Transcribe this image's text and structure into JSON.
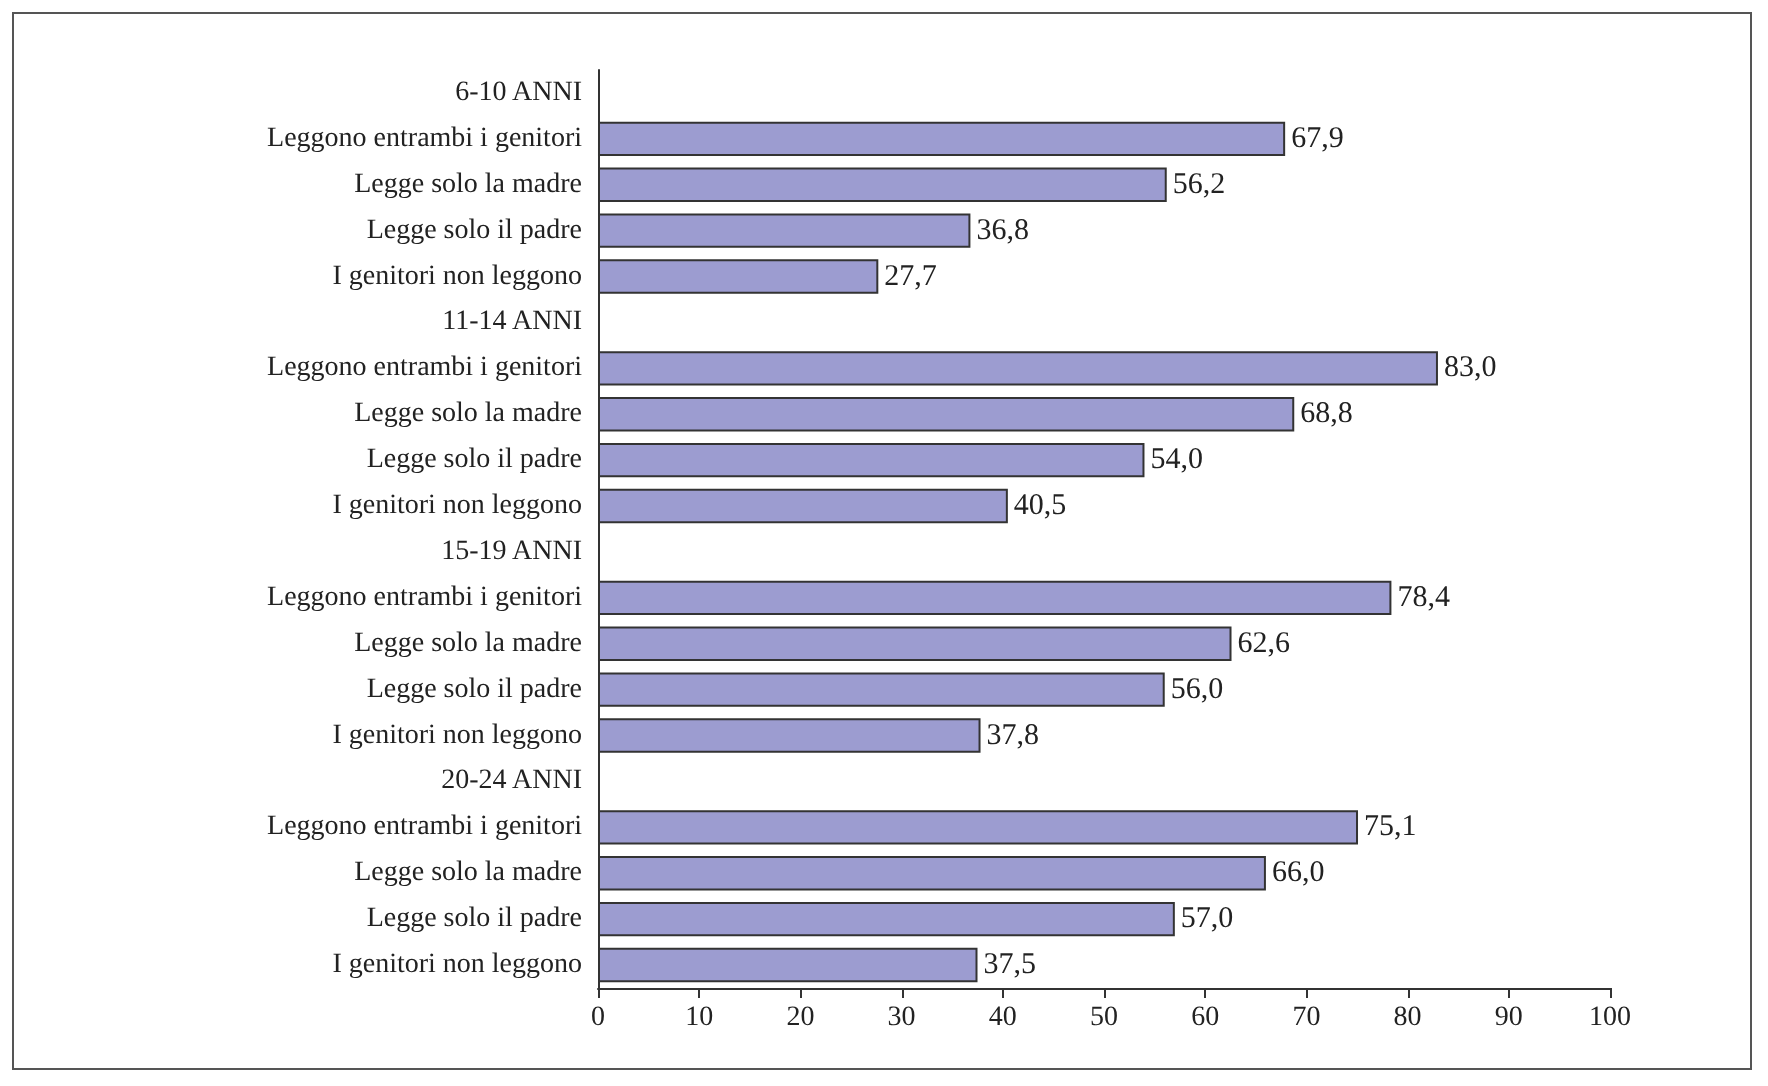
{
  "chart_data": {
    "type": "bar",
    "orientation": "horizontal",
    "categories": [
      "6-10 ANNI",
      "Leggono entrambi i genitori",
      "Legge solo la madre",
      "Legge solo il padre",
      "I genitori non leggono",
      "11-14 ANNI",
      "Leggono entrambi i genitori",
      "Legge solo la madre",
      "Legge solo il padre",
      "I genitori non leggono",
      "15-19 ANNI",
      "Leggono entrambi i genitori",
      "Legge solo la madre",
      "Legge solo il padre",
      "I genitori non leggono",
      "20-24 ANNI",
      "Leggono entrambi i genitori",
      "Legge solo la madre",
      "Legge solo il padre",
      "I genitori non leggono"
    ],
    "values": [
      null,
      67.9,
      56.2,
      36.8,
      27.7,
      null,
      83.0,
      68.8,
      54.0,
      40.5,
      null,
      78.4,
      62.6,
      56.0,
      37.8,
      null,
      75.1,
      66.0,
      57.0,
      37.5
    ],
    "value_labels": [
      null,
      "67,9",
      "56,2",
      "36,8",
      "27,7",
      null,
      "83,0",
      "68,8",
      "54,0",
      "40,5",
      null,
      "78,4",
      "62,6",
      "56,0",
      "37,8",
      null,
      "75,1",
      "66,0",
      "57,0",
      "37,5"
    ],
    "color": "#9c9cd0",
    "xlim": [
      0,
      100
    ],
    "xticks": [
      0,
      10,
      20,
      30,
      40,
      50,
      60,
      70,
      80,
      90,
      100
    ],
    "grid": false
  }
}
